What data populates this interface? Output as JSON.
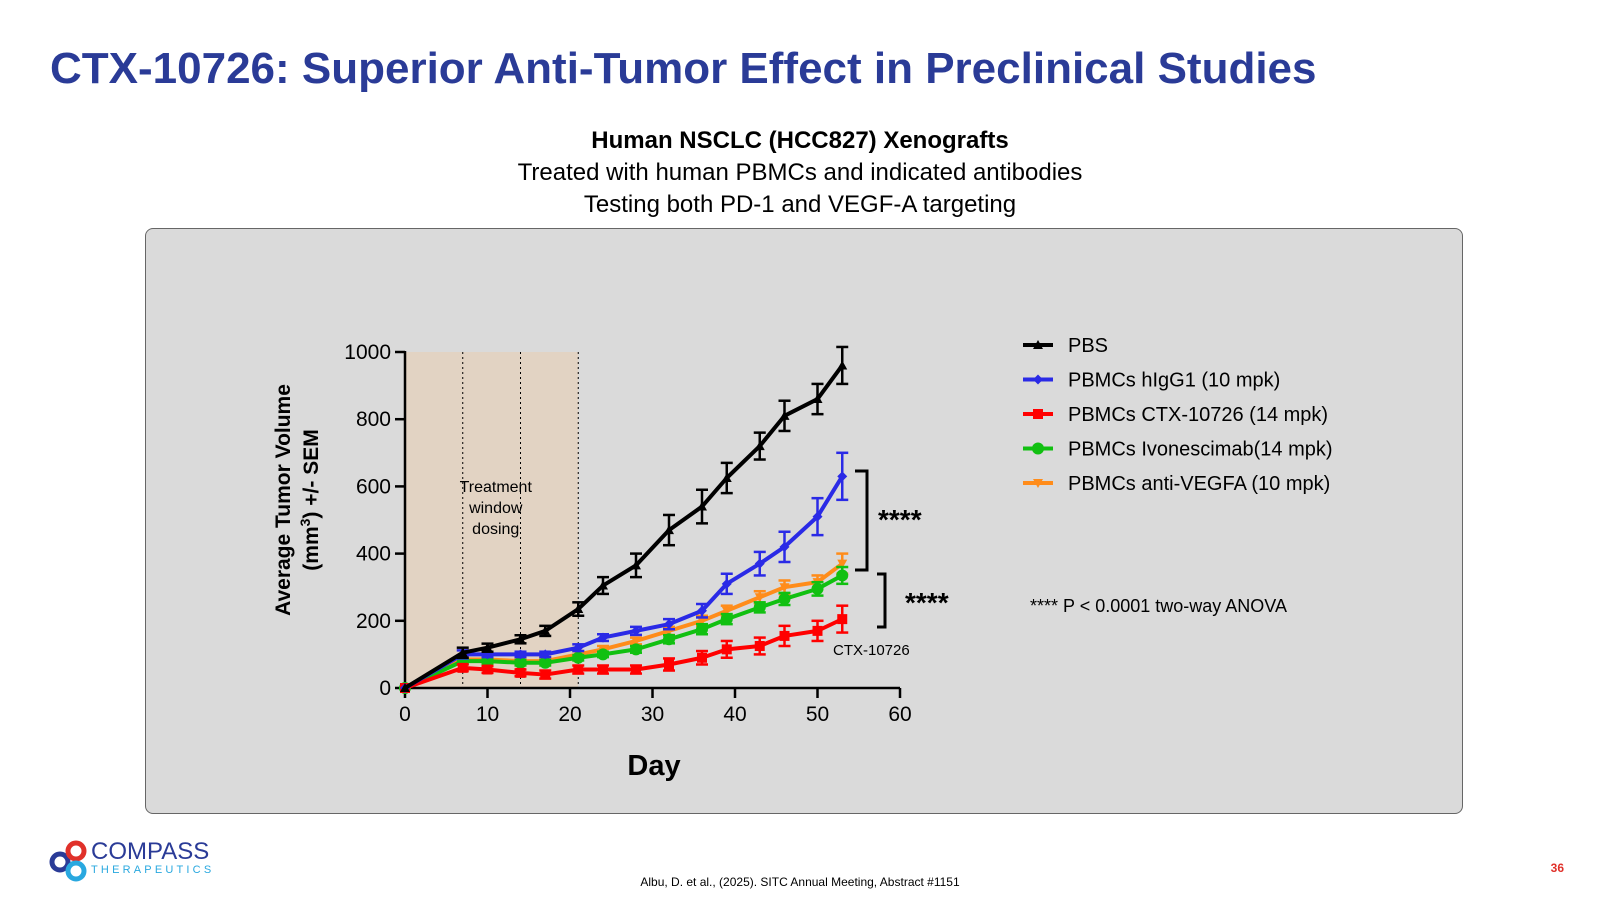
{
  "slide": {
    "title": "CTX-10726: Superior Anti-Tumor Effect in Preclinical Studies",
    "subtitle_bold": "Human NSCLC (HCC827) Xenografts",
    "subtitle_line2": "Treated with human PBMCs and indicated antibodies",
    "subtitle_line3": "Testing both PD-1 and VEGF-A targeting",
    "reference": "Albu, D. et al., (2025). SITC Annual Meeting, Abstract #1151",
    "page_number": "36",
    "logo_word1": "COMPASS",
    "logo_word2": "THERAPEUTICS"
  },
  "chart_data": {
    "type": "line",
    "xlabel": "Day",
    "ylabel_line1": "Average Tumor Volume",
    "ylabel_line2_pre": "(mm",
    "ylabel_line2_sup": "3",
    "ylabel_line2_post": ") +/- SEM",
    "xlim": [
      0,
      60
    ],
    "ylim": [
      0,
      1000
    ],
    "xticks": [
      0,
      10,
      20,
      30,
      40,
      50,
      60
    ],
    "yticks": [
      0,
      200,
      400,
      600,
      800,
      1000
    ],
    "treatment_window": {
      "x_start": 0,
      "x_end": 21,
      "dosing_days": [
        7,
        14,
        21
      ],
      "label_lines": [
        "Treatment",
        "window",
        "dosing"
      ],
      "color": "#e2d3c3"
    },
    "series": [
      {
        "name": "PBS",
        "color": "#000000",
        "marker": "triangle",
        "x": [
          0,
          7,
          10,
          14,
          17,
          21,
          24,
          28,
          32,
          36,
          39,
          43,
          46,
          50,
          53
        ],
        "y": [
          0,
          105,
          120,
          145,
          170,
          235,
          305,
          365,
          470,
          540,
          625,
          720,
          810,
          860,
          960
        ],
        "err": [
          0,
          15,
          12,
          12,
          15,
          20,
          25,
          35,
          45,
          50,
          45,
          40,
          45,
          45,
          55
        ]
      },
      {
        "name": "PBMCs hIgG1 (10 mpk)",
        "color": "#2a2ae6",
        "marker": "diamond",
        "x": [
          0,
          7,
          10,
          14,
          17,
          21,
          24,
          28,
          32,
          36,
          39,
          43,
          46,
          50,
          53
        ],
        "y": [
          0,
          100,
          100,
          100,
          100,
          120,
          150,
          170,
          190,
          230,
          310,
          370,
          420,
          510,
          630
        ],
        "err": [
          0,
          12,
          8,
          8,
          8,
          10,
          10,
          12,
          15,
          20,
          30,
          35,
          45,
          55,
          70
        ]
      },
      {
        "name": "PBMCs CTX-10726 (14 mpk)",
        "color": "#ff0000",
        "marker": "square",
        "x": [
          0,
          7,
          10,
          14,
          17,
          21,
          24,
          28,
          32,
          36,
          39,
          43,
          46,
          50,
          53
        ],
        "y": [
          0,
          60,
          55,
          45,
          40,
          55,
          55,
          55,
          70,
          90,
          115,
          125,
          155,
          170,
          205
        ],
        "err": [
          0,
          10,
          10,
          10,
          12,
          12,
          12,
          12,
          18,
          20,
          25,
          25,
          30,
          30,
          40
        ]
      },
      {
        "name": "PBMCs Ivonescimab(14 mpk)",
        "color": "#11c011",
        "marker": "circle",
        "x": [
          0,
          7,
          10,
          14,
          17,
          21,
          24,
          28,
          32,
          36,
          39,
          43,
          46,
          50,
          53
        ],
        "y": [
          0,
          80,
          80,
          75,
          75,
          90,
          100,
          115,
          145,
          175,
          205,
          240,
          265,
          295,
          335
        ],
        "err": [
          0,
          8,
          8,
          8,
          8,
          8,
          8,
          10,
          12,
          15,
          15,
          15,
          18,
          20,
          25
        ]
      },
      {
        "name": "PBMCs anti-VEGFA (10 mpk)",
        "color": "#ff8c1a",
        "marker": "triangle-down",
        "x": [
          0,
          7,
          10,
          14,
          17,
          21,
          24,
          28,
          32,
          36,
          39,
          43,
          46,
          50,
          53
        ],
        "y": [
          0,
          85,
          85,
          80,
          80,
          100,
          115,
          140,
          170,
          200,
          230,
          270,
          300,
          315,
          370
        ],
        "err": [
          0,
          8,
          8,
          8,
          8,
          10,
          10,
          10,
          12,
          15,
          15,
          18,
          20,
          20,
          30
        ]
      }
    ],
    "annotations": {
      "sig1": "****",
      "sig2": "****",
      "ctx_label": "CTX-10726",
      "anova_note": "**** P < 0.0001 two-way ANOVA"
    }
  }
}
